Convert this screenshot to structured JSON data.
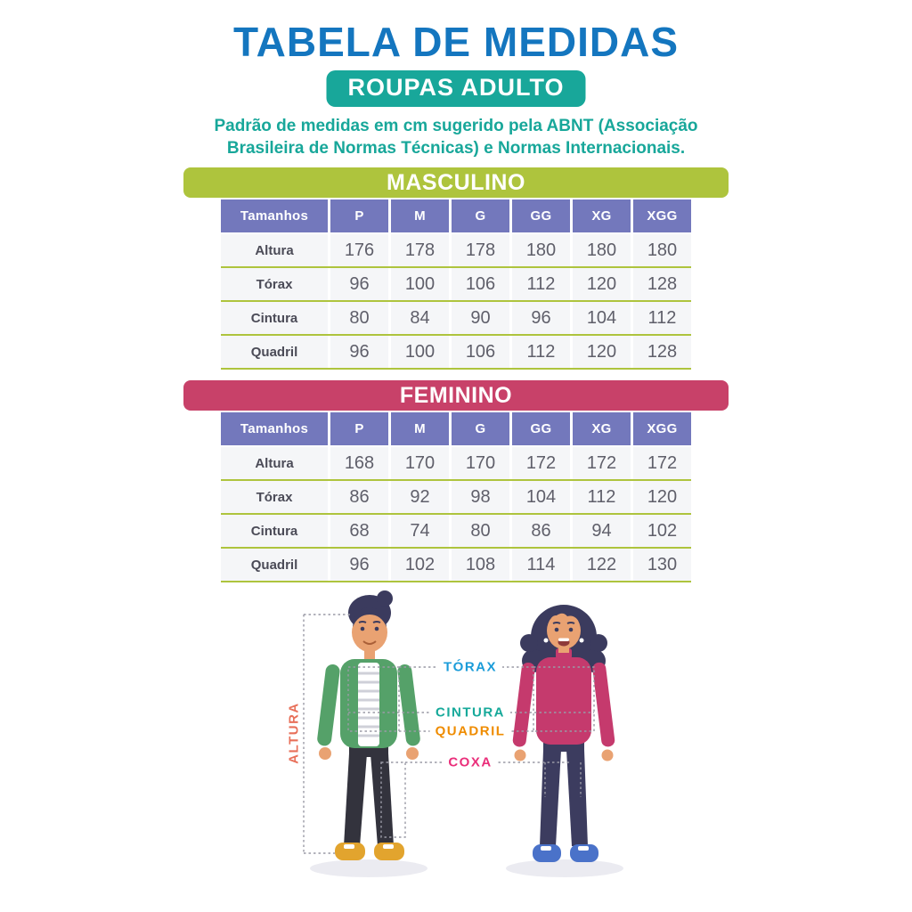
{
  "page": {
    "title": "TABELA DE MEDIDAS",
    "badge": "ROUPAS ADULTO",
    "description": "Padrão de medidas em cm sugerido pela ABNT (Associação Brasileira de Normas Técnicas) e Normas Internacionais."
  },
  "colors": {
    "title_blue": "#1476bf",
    "teal": "#18a79a",
    "lime_green": "#aec43d",
    "magenta": "#c84169",
    "table_header_purple": "#7378bc",
    "row_bg": "#f5f6f8",
    "torax_label": "#1b9cd9",
    "cintura_label": "#16a99a",
    "quadril_label": "#ef8c00",
    "coxa_label": "#ea2e7a",
    "altura_label": "#e8705a"
  },
  "tables": [
    {
      "section": "MASCULINO",
      "columns": [
        "Tamanhos",
        "P",
        "M",
        "G",
        "GG",
        "XG",
        "XGG"
      ],
      "rows": [
        {
          "label": "Altura",
          "values": [
            176,
            178,
            178,
            180,
            180,
            180
          ]
        },
        {
          "label": "Tórax",
          "values": [
            96,
            100,
            106,
            112,
            120,
            128
          ]
        },
        {
          "label": "Cintura",
          "values": [
            80,
            84,
            90,
            96,
            104,
            112
          ]
        },
        {
          "label": "Quadril",
          "values": [
            96,
            100,
            106,
            112,
            120,
            128
          ]
        }
      ]
    },
    {
      "section": "FEMININO",
      "columns": [
        "Tamanhos",
        "P",
        "M",
        "G",
        "GG",
        "XG",
        "XGG"
      ],
      "rows": [
        {
          "label": "Altura",
          "values": [
            168,
            170,
            170,
            172,
            172,
            172
          ]
        },
        {
          "label": "Tórax",
          "values": [
            86,
            92,
            98,
            104,
            112,
            120
          ]
        },
        {
          "label": "Cintura",
          "values": [
            68,
            74,
            80,
            86,
            94,
            102
          ]
        },
        {
          "label": "Quadril",
          "values": [
            96,
            102,
            108,
            114,
            122,
            130
          ]
        }
      ]
    }
  ],
  "diagram": {
    "labels": [
      {
        "text": "TÓRAX",
        "color": "#1b9cd9"
      },
      {
        "text": "CINTURA",
        "color": "#16a99a"
      },
      {
        "text": "QUADRIL",
        "color": "#ef8c00"
      },
      {
        "text": "COXA",
        "color": "#ea2e7a"
      },
      {
        "text": "ALTURA",
        "color": "#e8705a"
      }
    ]
  }
}
